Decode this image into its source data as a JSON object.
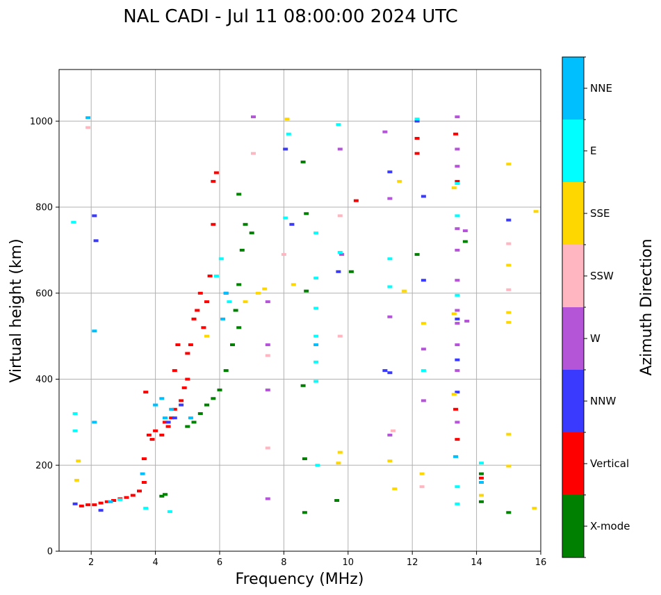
{
  "chart_data": {
    "type": "scatter",
    "title": "NAL CADI - Jul 11 08:00:00 2024 UTC",
    "xlabel": "Frequency (MHz)",
    "ylabel": "Virtual height (km)",
    "xlim": [
      1,
      16
    ],
    "ylim": [
      0,
      1120
    ],
    "xticks": [
      2,
      4,
      6,
      8,
      10,
      12,
      14,
      16
    ],
    "yticks": [
      0,
      200,
      400,
      600,
      800,
      1000
    ],
    "grid": true,
    "colorbar": {
      "title": "Azimuth Direction",
      "categories": [
        {
          "name": "X-mode",
          "color": "#008000"
        },
        {
          "name": "Vertical",
          "color": "#ff0000"
        },
        {
          "name": "NNW",
          "color": "#3a3aff"
        },
        {
          "name": "W",
          "color": "#b455d8"
        },
        {
          "name": "SSW",
          "color": "#ffb6c1"
        },
        {
          "name": "SSE",
          "color": "#ffd700"
        },
        {
          "name": "E",
          "color": "#00ffff"
        },
        {
          "name": "NNE",
          "color": "#00bfff"
        }
      ]
    },
    "series": [
      {
        "name": "Vertical",
        "points": [
          [
            1.7,
            105
          ],
          [
            1.9,
            108
          ],
          [
            2.1,
            108
          ],
          [
            2.3,
            112
          ],
          [
            2.5,
            115
          ],
          [
            2.7,
            118
          ],
          [
            2.9,
            122
          ],
          [
            3.1,
            125
          ],
          [
            3.3,
            130
          ],
          [
            3.5,
            140
          ],
          [
            3.65,
            160
          ],
          [
            3.65,
            215
          ],
          [
            3.8,
            270
          ],
          [
            3.9,
            260
          ],
          [
            4.0,
            280
          ],
          [
            4.2,
            270
          ],
          [
            4.3,
            300
          ],
          [
            4.4,
            290
          ],
          [
            4.5,
            310
          ],
          [
            4.6,
            330
          ],
          [
            4.6,
            420
          ],
          [
            4.7,
            480
          ],
          [
            4.8,
            350
          ],
          [
            4.9,
            380
          ],
          [
            5.0,
            400
          ],
          [
            5.0,
            460
          ],
          [
            5.1,
            480
          ],
          [
            5.2,
            540
          ],
          [
            5.3,
            560
          ],
          [
            5.4,
            600
          ],
          [
            5.5,
            520
          ],
          [
            5.6,
            580
          ],
          [
            5.7,
            640
          ],
          [
            5.8,
            760
          ],
          [
            5.8,
            860
          ],
          [
            5.9,
            880
          ],
          [
            6.2,
            600
          ],
          [
            12.15,
            960
          ],
          [
            12.15,
            925
          ],
          [
            13.35,
            970
          ],
          [
            13.4,
            860
          ],
          [
            10.25,
            815
          ],
          [
            13.35,
            330
          ],
          [
            13.4,
            260
          ],
          [
            14.15,
            170
          ],
          [
            3.7,
            370
          ]
        ]
      },
      {
        "name": "X-mode",
        "points": [
          [
            5.2,
            300
          ],
          [
            5.4,
            320
          ],
          [
            5.6,
            340
          ],
          [
            5.8,
            355
          ],
          [
            6.0,
            375
          ],
          [
            6.2,
            420
          ],
          [
            6.4,
            480
          ],
          [
            6.5,
            560
          ],
          [
            6.6,
            620
          ],
          [
            6.7,
            700
          ],
          [
            6.8,
            760
          ],
          [
            6.6,
            830
          ],
          [
            8.6,
            905
          ],
          [
            8.7,
            785
          ],
          [
            8.7,
            605
          ],
          [
            8.6,
            385
          ],
          [
            8.65,
            215
          ],
          [
            8.65,
            90
          ],
          [
            10.1,
            650
          ],
          [
            9.65,
            118
          ],
          [
            12.15,
            690
          ],
          [
            13.65,
            720
          ],
          [
            14.15,
            180
          ],
          [
            14.15,
            115
          ],
          [
            15.0,
            90
          ],
          [
            4.2,
            128
          ],
          [
            4.3,
            132
          ],
          [
            5.0,
            290
          ],
          [
            6.6,
            520
          ],
          [
            7.0,
            740
          ]
        ]
      },
      {
        "name": "NNW",
        "points": [
          [
            1.5,
            110
          ],
          [
            2.3,
            95
          ],
          [
            2.1,
            780
          ],
          [
            2.15,
            722
          ],
          [
            4.4,
            300
          ],
          [
            4.6,
            310
          ],
          [
            8.05,
            935
          ],
          [
            8.25,
            760
          ],
          [
            9.7,
            650
          ],
          [
            11.3,
            882
          ],
          [
            11.15,
            420
          ],
          [
            11.3,
            415
          ],
          [
            12.35,
            825
          ],
          [
            12.35,
            630
          ],
          [
            13.4,
            540
          ],
          [
            13.4,
            445
          ],
          [
            13.4,
            370
          ],
          [
            15.0,
            770
          ],
          [
            4.8,
            340
          ],
          [
            12.15,
            1000
          ]
        ]
      },
      {
        "name": "W",
        "points": [
          [
            7.05,
            1010
          ],
          [
            9.75,
            935
          ],
          [
            9.8,
            690
          ],
          [
            11.15,
            975
          ],
          [
            11.3,
            820
          ],
          [
            11.3,
            545
          ],
          [
            11.3,
            270
          ],
          [
            12.35,
            470
          ],
          [
            12.35,
            350
          ],
          [
            13.4,
            1010
          ],
          [
            13.4,
            935
          ],
          [
            13.4,
            895
          ],
          [
            13.4,
            750
          ],
          [
            13.4,
            700
          ],
          [
            13.4,
            630
          ],
          [
            13.4,
            560
          ],
          [
            13.4,
            530
          ],
          [
            13.4,
            480
          ],
          [
            13.4,
            420
          ],
          [
            13.4,
            300
          ],
          [
            13.65,
            745
          ],
          [
            13.7,
            535
          ],
          [
            7.5,
            580
          ],
          [
            7.5,
            480
          ],
          [
            7.5,
            375
          ],
          [
            7.5,
            122
          ]
        ]
      },
      {
        "name": "SSW",
        "points": [
          [
            1.9,
            985
          ],
          [
            7.05,
            925
          ],
          [
            9.75,
            780
          ],
          [
            9.75,
            500
          ],
          [
            11.4,
            280
          ],
          [
            12.3,
            150
          ],
          [
            15.0,
            715
          ],
          [
            15.0,
            608
          ],
          [
            7.5,
            240
          ],
          [
            7.5,
            455
          ],
          [
            8.0,
            690
          ]
        ]
      },
      {
        "name": "SSE",
        "points": [
          [
            8.1,
            1005
          ],
          [
            8.3,
            620
          ],
          [
            9.7,
            205
          ],
          [
            9.75,
            230
          ],
          [
            11.3,
            210
          ],
          [
            11.6,
            860
          ],
          [
            11.75,
            605
          ],
          [
            12.35,
            530
          ],
          [
            13.3,
            845
          ],
          [
            13.3,
            552
          ],
          [
            13.3,
            365
          ],
          [
            14.15,
            130
          ],
          [
            15.0,
            900
          ],
          [
            15.0,
            665
          ],
          [
            15.0,
            555
          ],
          [
            15.0,
            532
          ],
          [
            15.0,
            272
          ],
          [
            15.0,
            198
          ],
          [
            15.8,
            100
          ],
          [
            15.85,
            790
          ],
          [
            5.6,
            500
          ],
          [
            6.8,
            580
          ],
          [
            7.2,
            600
          ],
          [
            7.4,
            610
          ],
          [
            1.6,
            210
          ],
          [
            1.55,
            165
          ],
          [
            11.45,
            145
          ],
          [
            12.3,
            180
          ]
        ]
      },
      {
        "name": "E",
        "points": [
          [
            1.5,
            320
          ],
          [
            1.5,
            280
          ],
          [
            1.45,
            765
          ],
          [
            4.45,
            92
          ],
          [
            9.0,
            740
          ],
          [
            9.0,
            635
          ],
          [
            9.0,
            565
          ],
          [
            9.0,
            500
          ],
          [
            9.0,
            440
          ],
          [
            9.0,
            395
          ],
          [
            9.05,
            200
          ],
          [
            9.75,
            695
          ],
          [
            9.7,
            992
          ],
          [
            11.3,
            680
          ],
          [
            11.3,
            615
          ],
          [
            12.35,
            420
          ],
          [
            13.4,
            855
          ],
          [
            13.4,
            780
          ],
          [
            13.4,
            595
          ],
          [
            13.4,
            150
          ],
          [
            13.4,
            110
          ],
          [
            14.15,
            205
          ],
          [
            5.9,
            640
          ],
          [
            6.3,
            580
          ],
          [
            8.05,
            775
          ],
          [
            8.15,
            970
          ],
          [
            3.7,
            100
          ],
          [
            2.9,
            120
          ],
          [
            12.15,
            1005
          ],
          [
            6.05,
            680
          ]
        ]
      },
      {
        "name": "NNE",
        "points": [
          [
            1.9,
            1008
          ],
          [
            2.1,
            300
          ],
          [
            2.1,
            512
          ],
          [
            2.6,
            115
          ],
          [
            4.0,
            340
          ],
          [
            4.3,
            310
          ],
          [
            4.2,
            355
          ],
          [
            4.5,
            330
          ],
          [
            5.1,
            310
          ],
          [
            6.1,
            540
          ],
          [
            6.2,
            600
          ],
          [
            13.35,
            220
          ],
          [
            14.15,
            160
          ],
          [
            9.0,
            480
          ],
          [
            3.6,
            180
          ]
        ]
      }
    ]
  }
}
